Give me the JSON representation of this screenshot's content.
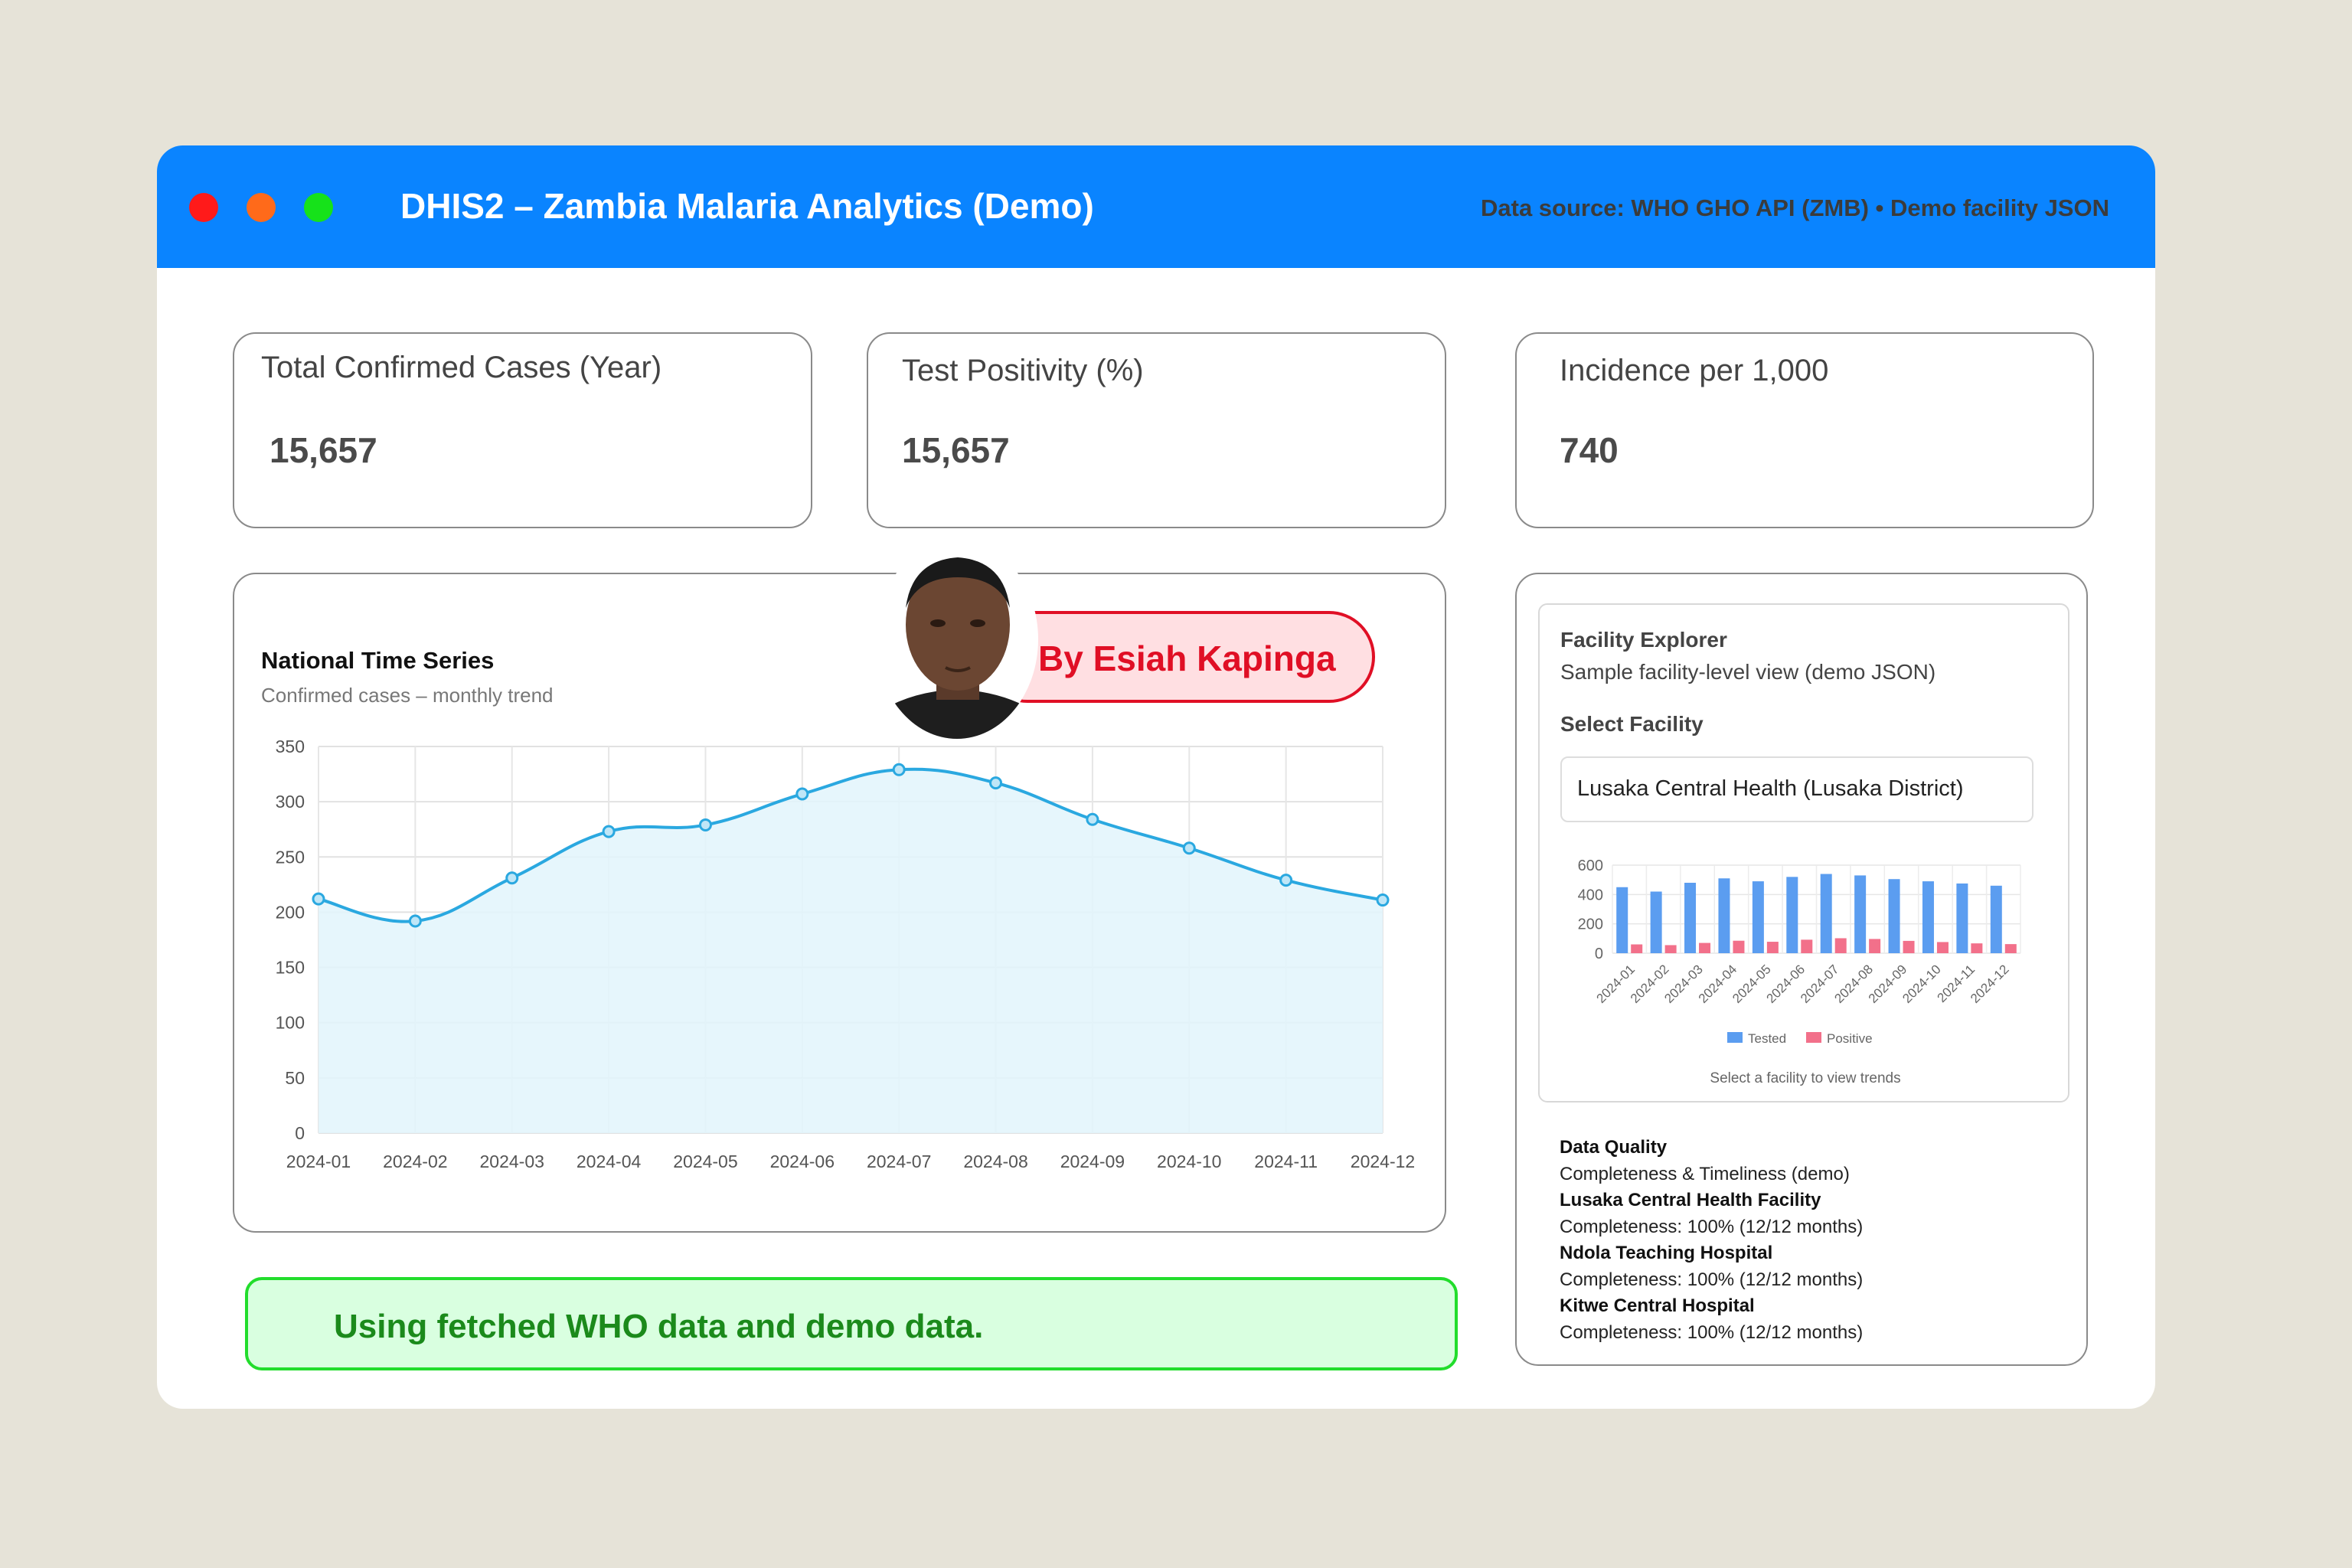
{
  "app": {
    "title": "DHIS2 – Zambia Malaria Analytics (Demo)",
    "data_source": "Data source: WHO GHO API (ZMB) • Demo facility JSON"
  },
  "kpis": [
    {
      "label": "Total Confirmed Cases (Year)",
      "value": "15,657"
    },
    {
      "label": "Test Positivity (%)",
      "value": "15,657"
    },
    {
      "label": "Incidence per 1,000",
      "value": "740"
    }
  ],
  "time_series": {
    "title": "National Time Series",
    "subtitle": "Confirmed cases – monthly trend"
  },
  "author": {
    "label": "By Esiah Kapinga"
  },
  "status": {
    "message": "Using fetched WHO data and demo data."
  },
  "facility_explorer": {
    "title": "Facility Explorer",
    "subtitle": "Sample facility-level view (demo JSON)",
    "select_label": "Select Facility",
    "selected_facility": "Lusaka Central Health (Lusaka District)",
    "caption": "Select a facility to view trends"
  },
  "data_quality": {
    "title": "Data Quality",
    "subtitle": "Completeness & Timeliness (demo)",
    "facilities": [
      {
        "name": "Lusaka Central Health Facility",
        "completeness": "Completeness: 100% (12/12 months)"
      },
      {
        "name": "Ndola Teaching Hospital",
        "completeness": "Completeness: 100% (12/12 months)"
      },
      {
        "name": "Kitwe Central Hospital",
        "completeness": "Completeness: 100% (12/12 months)"
      }
    ]
  },
  "colors": {
    "titlebar": "#0a84ff",
    "line": "#2aa8e0",
    "area": "#e2f4fb",
    "tested": "#5b9df0",
    "positive": "#f2708a",
    "status_border": "#22dd2c",
    "author_red": "#e00f25"
  },
  "chart_data": [
    {
      "type": "area",
      "title": "National Time Series",
      "subtitle": "Confirmed cases – monthly trend",
      "categories": [
        "2024-01",
        "2024-02",
        "2024-03",
        "2024-04",
        "2024-05",
        "2024-06",
        "2024-07",
        "2024-08",
        "2024-09",
        "2024-10",
        "2024-11",
        "2024-12"
      ],
      "values": [
        212,
        192,
        231,
        273,
        279,
        307,
        329,
        317,
        284,
        258,
        229,
        211
      ],
      "yticks": [
        0,
        50,
        100,
        150,
        200,
        250,
        300,
        350
      ],
      "ylim": [
        0,
        350
      ],
      "grid": true
    },
    {
      "type": "bar",
      "categories": [
        "2024-01",
        "2024-02",
        "2024-03",
        "2024-04",
        "2024-05",
        "2024-06",
        "2024-07",
        "2024-08",
        "2024-09",
        "2024-10",
        "2024-11",
        "2024-12"
      ],
      "series": [
        {
          "name": "Tested",
          "values": [
            450,
            420,
            480,
            510,
            490,
            520,
            540,
            530,
            505,
            490,
            475,
            460
          ]
        },
        {
          "name": "Positive",
          "values": [
            60,
            55,
            70,
            85,
            78,
            92,
            102,
            97,
            84,
            76,
            67,
            62
          ]
        }
      ],
      "yticks": [
        0,
        200,
        400,
        600
      ],
      "ylim": [
        0,
        600
      ],
      "legend": "bottom",
      "grid": true
    }
  ]
}
